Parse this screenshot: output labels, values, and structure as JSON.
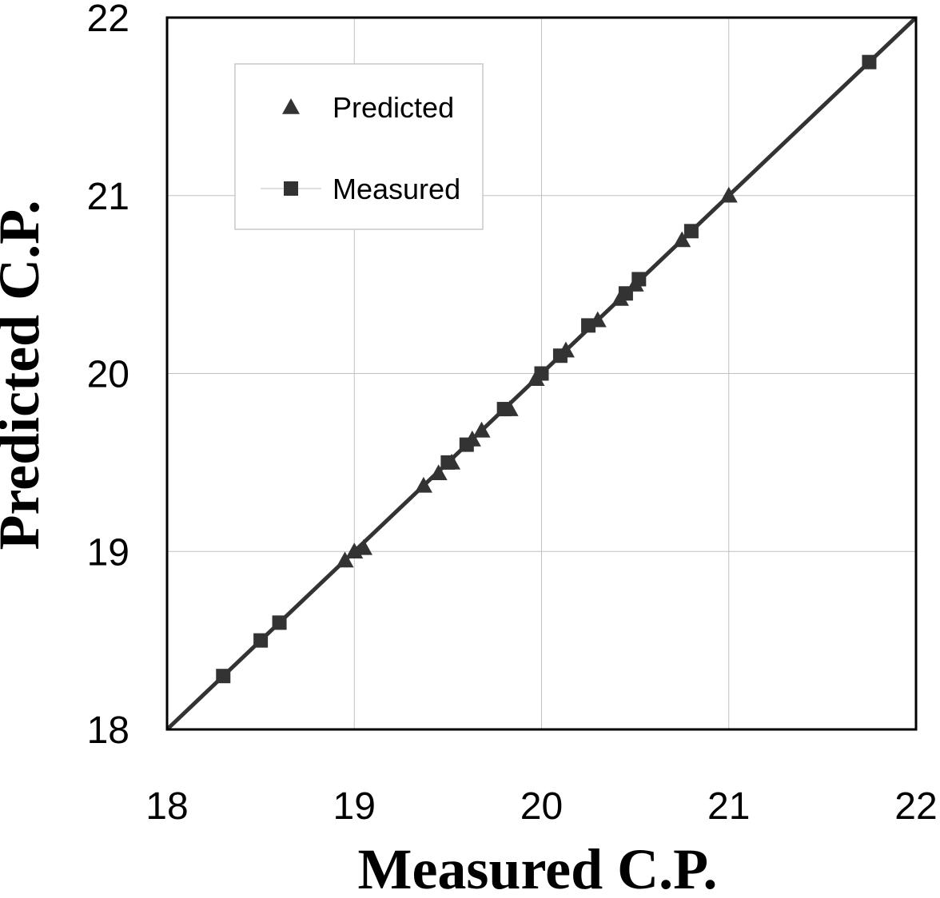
{
  "chart_data": {
    "type": "scatter",
    "xlabel": "Measured C.P.",
    "ylabel": "Predicted C.P.",
    "xlim": [
      18,
      22
    ],
    "ylim": [
      18,
      22
    ],
    "x_ticks": [
      "18",
      "19",
      "20",
      "21",
      "22"
    ],
    "y_ticks": [
      "18",
      "19",
      "20",
      "21",
      "22"
    ],
    "grid": true,
    "legend_position": "top-left",
    "reference_line": {
      "from": [
        18,
        18
      ],
      "to": [
        22,
        22
      ]
    },
    "series": [
      {
        "name": "Predicted",
        "marker": "triangle",
        "points": [
          [
            18.95,
            18.95
          ],
          [
            19.0,
            19.0
          ],
          [
            19.05,
            19.02
          ],
          [
            19.37,
            19.37
          ],
          [
            19.45,
            19.44
          ],
          [
            19.52,
            19.5
          ],
          [
            19.63,
            19.63
          ],
          [
            19.68,
            19.68
          ],
          [
            19.83,
            19.8
          ],
          [
            19.97,
            19.97
          ],
          [
            20.13,
            20.13
          ],
          [
            20.3,
            20.3
          ],
          [
            20.42,
            20.42
          ],
          [
            20.5,
            20.5
          ],
          [
            20.75,
            20.75
          ],
          [
            21.0,
            21.0
          ]
        ]
      },
      {
        "name": "Measured",
        "marker": "square",
        "points": [
          [
            18.3,
            18.3
          ],
          [
            18.5,
            18.5
          ],
          [
            18.6,
            18.6
          ],
          [
            19.5,
            19.5
          ],
          [
            19.6,
            19.6
          ],
          [
            19.8,
            19.8
          ],
          [
            20.0,
            20.0
          ],
          [
            20.1,
            20.1
          ],
          [
            20.25,
            20.27
          ],
          [
            20.45,
            20.45
          ],
          [
            20.52,
            20.53
          ],
          [
            20.8,
            20.8
          ],
          [
            21.75,
            21.75
          ]
        ]
      }
    ]
  },
  "colors": {
    "marker": "#333333",
    "line": "#333333",
    "grid": "#c0c0c0",
    "frame": "#000000"
  }
}
